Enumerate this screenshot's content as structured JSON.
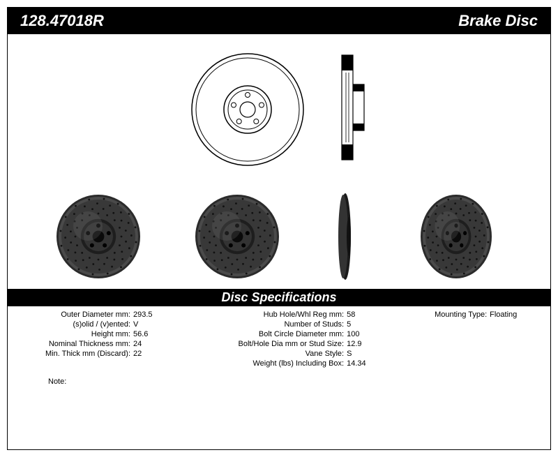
{
  "header": {
    "part_number": "128.47018R",
    "product_type": "Brake Disc"
  },
  "diagram": {
    "outer_diameter_ratio": 1.0,
    "hub_diameter_ratio": 0.38,
    "stud_count": 5,
    "stud_circle_ratio": 0.24,
    "stud_hole_ratio": 0.03,
    "center_hole_ratio": 0.12
  },
  "specs_title": "Disc Specifications",
  "specs": {
    "col1": [
      {
        "label": "Outer Diameter mm:",
        "value": "293.5"
      },
      {
        "label": "(s)olid / (v)ented:",
        "value": "V"
      },
      {
        "label": "Height mm:",
        "value": "56.6"
      },
      {
        "label": "Nominal Thickness mm:",
        "value": "24"
      },
      {
        "label": "Min. Thick mm (Discard):",
        "value": "22"
      }
    ],
    "col2": [
      {
        "label": "Hub Hole/Whl Reg mm:",
        "value": "58"
      },
      {
        "label": "Number of Studs:",
        "value": "5"
      },
      {
        "label": "Bolt Circle Diameter mm:",
        "value": "100"
      },
      {
        "label": "Bolt/Hole Dia mm or Stud Size:",
        "value": "12.9"
      },
      {
        "label": "Vane Style:",
        "value": "S"
      },
      {
        "label": "Weight (lbs) Including Box:",
        "value": "14.34"
      }
    ],
    "col3": [
      {
        "label": "Mounting Type:",
        "value": "Floating"
      }
    ]
  },
  "note_label": "Note:",
  "note_value": "",
  "colors": {
    "header_bg": "#000000",
    "header_fg": "#ffffff",
    "page_bg": "#ffffff",
    "rotor_dark": "#2a2a2a",
    "rotor_mid": "#555555",
    "rotor_light": "#888888"
  }
}
